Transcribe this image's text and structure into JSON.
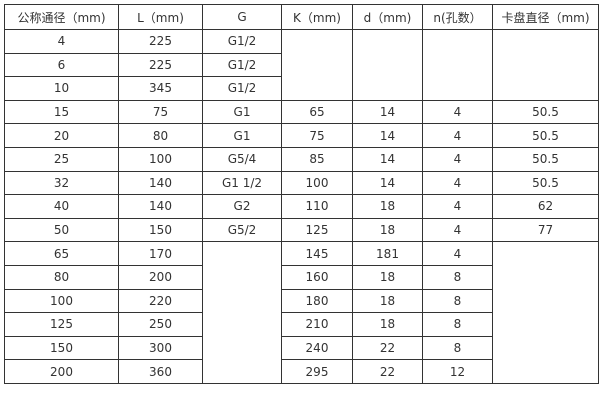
{
  "headers": [
    "公称通径（mm)",
    "L（mm)",
    "G",
    "K（mm)",
    "d（mm)",
    "n(孔数）",
    "卡盘直径（mm)"
  ],
  "rows": [
    {
      "dn": "4",
      "l": "225",
      "g": "G1/2"
    },
    {
      "dn": "6",
      "l": "225",
      "g": "G1/2"
    },
    {
      "dn": "10",
      "l": "345",
      "g": "G1/2"
    },
    {
      "dn": "15",
      "l": "75",
      "g": "G1",
      "k": "65",
      "d": "14",
      "n": "4",
      "c": "50.5"
    },
    {
      "dn": "20",
      "l": "80",
      "g": "G1",
      "k": "75",
      "d": "14",
      "n": "4",
      "c": "50.5"
    },
    {
      "dn": "25",
      "l": "100",
      "g": "G5/4",
      "k": "85",
      "d": "14",
      "n": "4",
      "c": "50.5"
    },
    {
      "dn": "32",
      "l": "140",
      "g": "G1  1/2",
      "k": "100",
      "d": "14",
      "n": "4",
      "c": "50.5"
    },
    {
      "dn": "40",
      "l": "140",
      "g": "G2",
      "k": "110",
      "d": "18",
      "n": "4",
      "c": "62"
    },
    {
      "dn": "50",
      "l": "150",
      "g": "G5/2",
      "k": "125",
      "d": "18",
      "n": "4",
      "c": "77"
    },
    {
      "dn": "65",
      "l": "170",
      "k": "145",
      "d": "181",
      "n": "4"
    },
    {
      "dn": "80",
      "l": "200",
      "k": "160",
      "d": "18",
      "n": "8"
    },
    {
      "dn": "100",
      "l": "220",
      "k": "180",
      "d": "18",
      "n": "8"
    },
    {
      "dn": "125",
      "l": "250",
      "k": "210",
      "d": "18",
      "n": "8"
    },
    {
      "dn": "150",
      "l": "300",
      "k": "240",
      "d": "22",
      "n": "8"
    },
    {
      "dn": "200",
      "l": "360",
      "k": "295",
      "d": "22",
      "n": "12"
    }
  ]
}
